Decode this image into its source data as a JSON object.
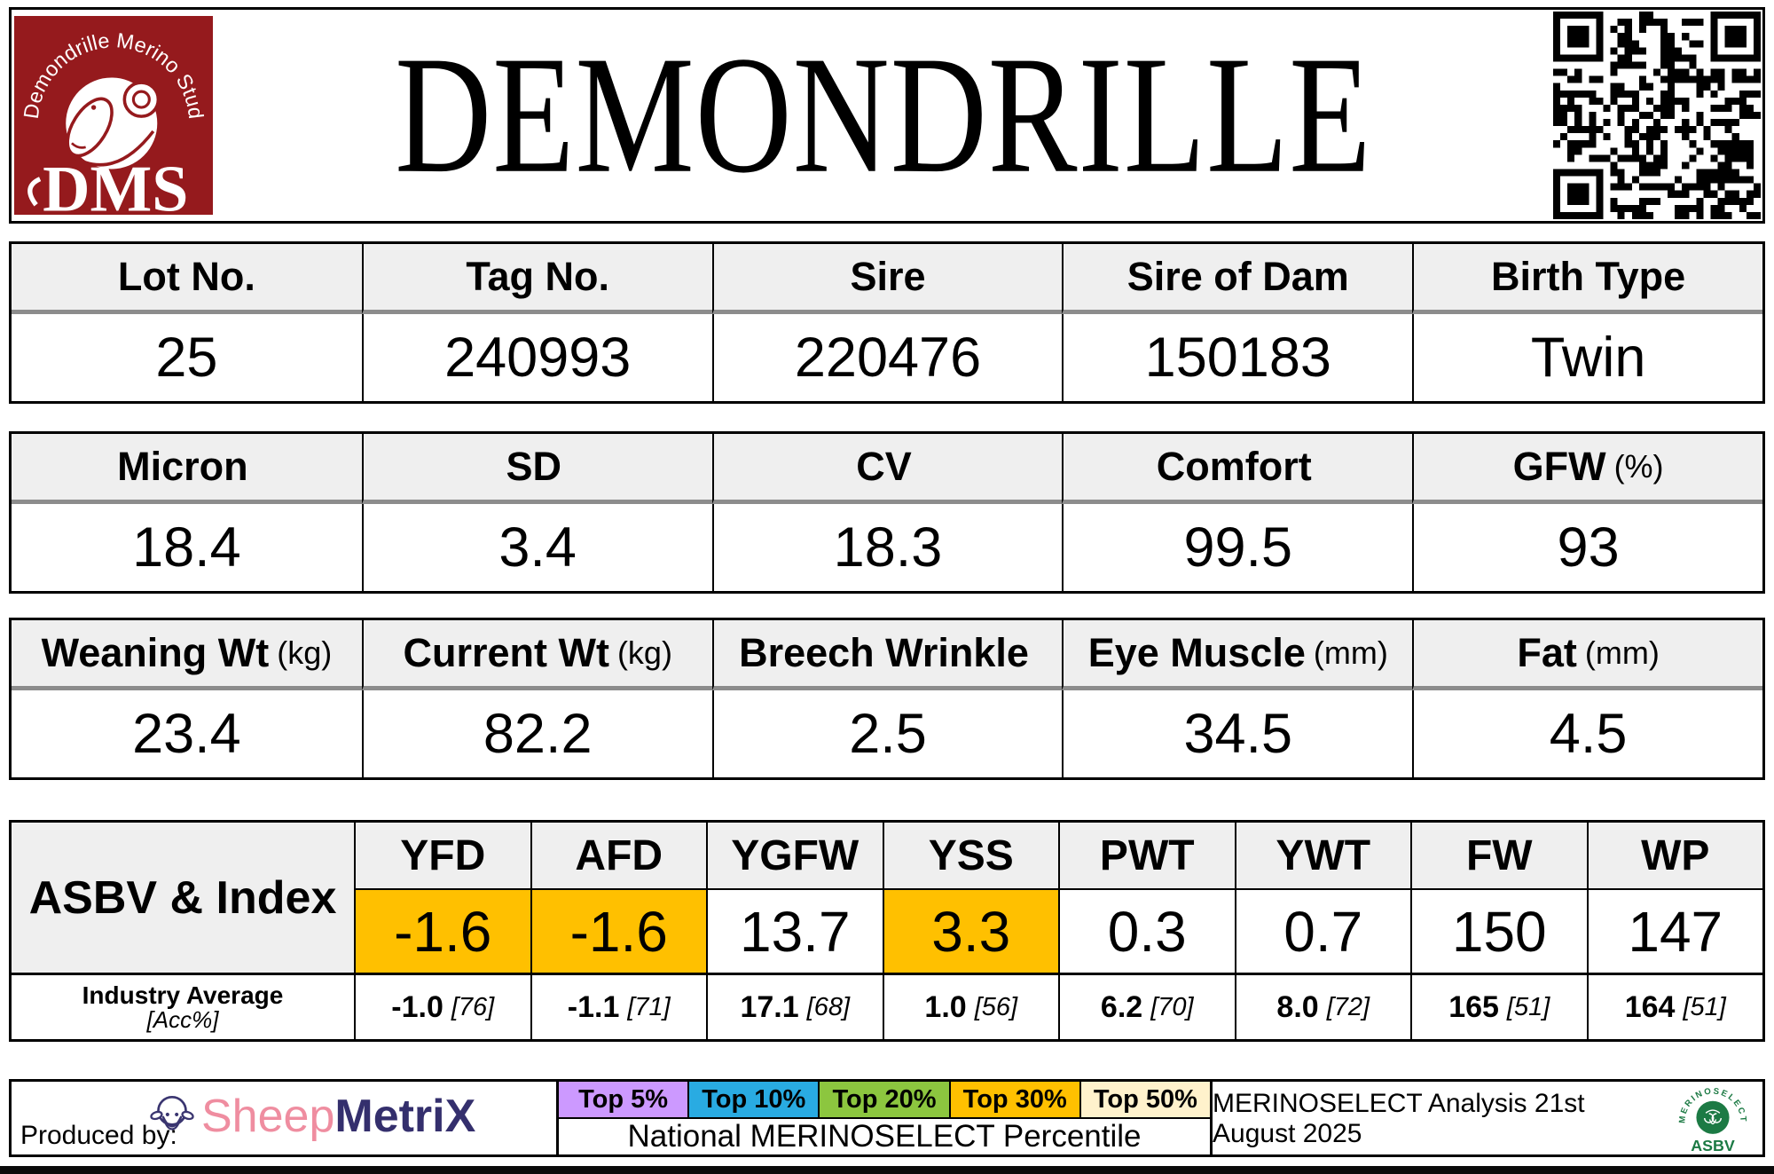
{
  "colors": {
    "brand_red": "#951a1d",
    "header_fill": "#efefef",
    "top30": "#FFC000",
    "navy": "#342f6d",
    "pink": "#ef8da0",
    "green": "#1c7a44"
  },
  "header": {
    "title": "DEMONDRILLE",
    "logo_arc_text": "Demondrille Merino Stud",
    "logo_acronym": "DMS"
  },
  "info_table": {
    "columns": [
      {
        "header": "Lot No.",
        "value": "25"
      },
      {
        "header": "Tag No.",
        "value": "240993"
      },
      {
        "header": "Sire",
        "value": "220476"
      },
      {
        "header": "Sire of Dam",
        "value": "150183"
      },
      {
        "header": "Birth Type",
        "value": "Twin"
      }
    ]
  },
  "wool_table": {
    "columns": [
      {
        "header": "Micron",
        "unit": "",
        "value": "18.4"
      },
      {
        "header": "SD",
        "unit": "",
        "value": "3.4"
      },
      {
        "header": "CV",
        "unit": "",
        "value": "18.3"
      },
      {
        "header": "Comfort",
        "unit": "",
        "value": "99.5"
      },
      {
        "header": "GFW",
        "unit": "(%)",
        "value": "93"
      }
    ]
  },
  "body_table": {
    "columns": [
      {
        "header": "Weaning Wt",
        "unit": "(kg)",
        "value": "23.4"
      },
      {
        "header": "Current Wt",
        "unit": "(kg)",
        "value": "82.2"
      },
      {
        "header": "Breech Wrinkle",
        "unit": "",
        "value": "2.5"
      },
      {
        "header": "Eye Muscle",
        "unit": "(mm)",
        "value": "34.5"
      },
      {
        "header": "Fat",
        "unit": "(mm)",
        "value": "4.5"
      }
    ]
  },
  "asbv_table": {
    "row_label": "ASBV & Index",
    "industry_label": "Industry Average",
    "industry_sublabel": "[Acc%]",
    "columns": [
      {
        "trait": "YFD",
        "value": "-1.6",
        "highlight": "top30",
        "industry": "-1.0",
        "acc": "[76]"
      },
      {
        "trait": "AFD",
        "value": "-1.6",
        "highlight": "top30",
        "industry": "-1.1",
        "acc": "[71]"
      },
      {
        "trait": "YGFW",
        "value": "13.7",
        "highlight": "",
        "industry": "17.1",
        "acc": "[68]"
      },
      {
        "trait": "YSS",
        "value": "3.3",
        "highlight": "top30",
        "industry": "1.0",
        "acc": "[56]"
      },
      {
        "trait": "PWT",
        "value": "0.3",
        "highlight": "",
        "industry": "6.2",
        "acc": "[70]"
      },
      {
        "trait": "YWT",
        "value": "0.7",
        "highlight": "",
        "industry": "8.0",
        "acc": "[72]"
      },
      {
        "trait": "FW",
        "value": "150",
        "highlight": "",
        "industry": "165",
        "acc": "[51]"
      },
      {
        "trait": "WP",
        "value": "147",
        "highlight": "",
        "industry": "164",
        "acc": "[51]"
      }
    ]
  },
  "footer": {
    "produced_by": "Produced by:",
    "sheepmetrix": {
      "sheep": "Sheep",
      "metrix": "MetriX"
    },
    "legend": {
      "items": [
        {
          "label": "Top 5%",
          "color": "#CC99FF"
        },
        {
          "label": "Top 10%",
          "color": "#29ABE2"
        },
        {
          "label": "Top 20%",
          "color": "#8CC63F"
        },
        {
          "label": "Top 30%",
          "color": "#FFC000"
        },
        {
          "label": "Top 50%",
          "color": "#FFF2CC"
        }
      ],
      "caption": "National MERINOSELECT Percentile"
    },
    "analysis": "MERINOSELECT Analysis 21st August 2025",
    "asbv_logo": {
      "arc_text": "MERINOSELECT",
      "label": "ASBV"
    }
  }
}
